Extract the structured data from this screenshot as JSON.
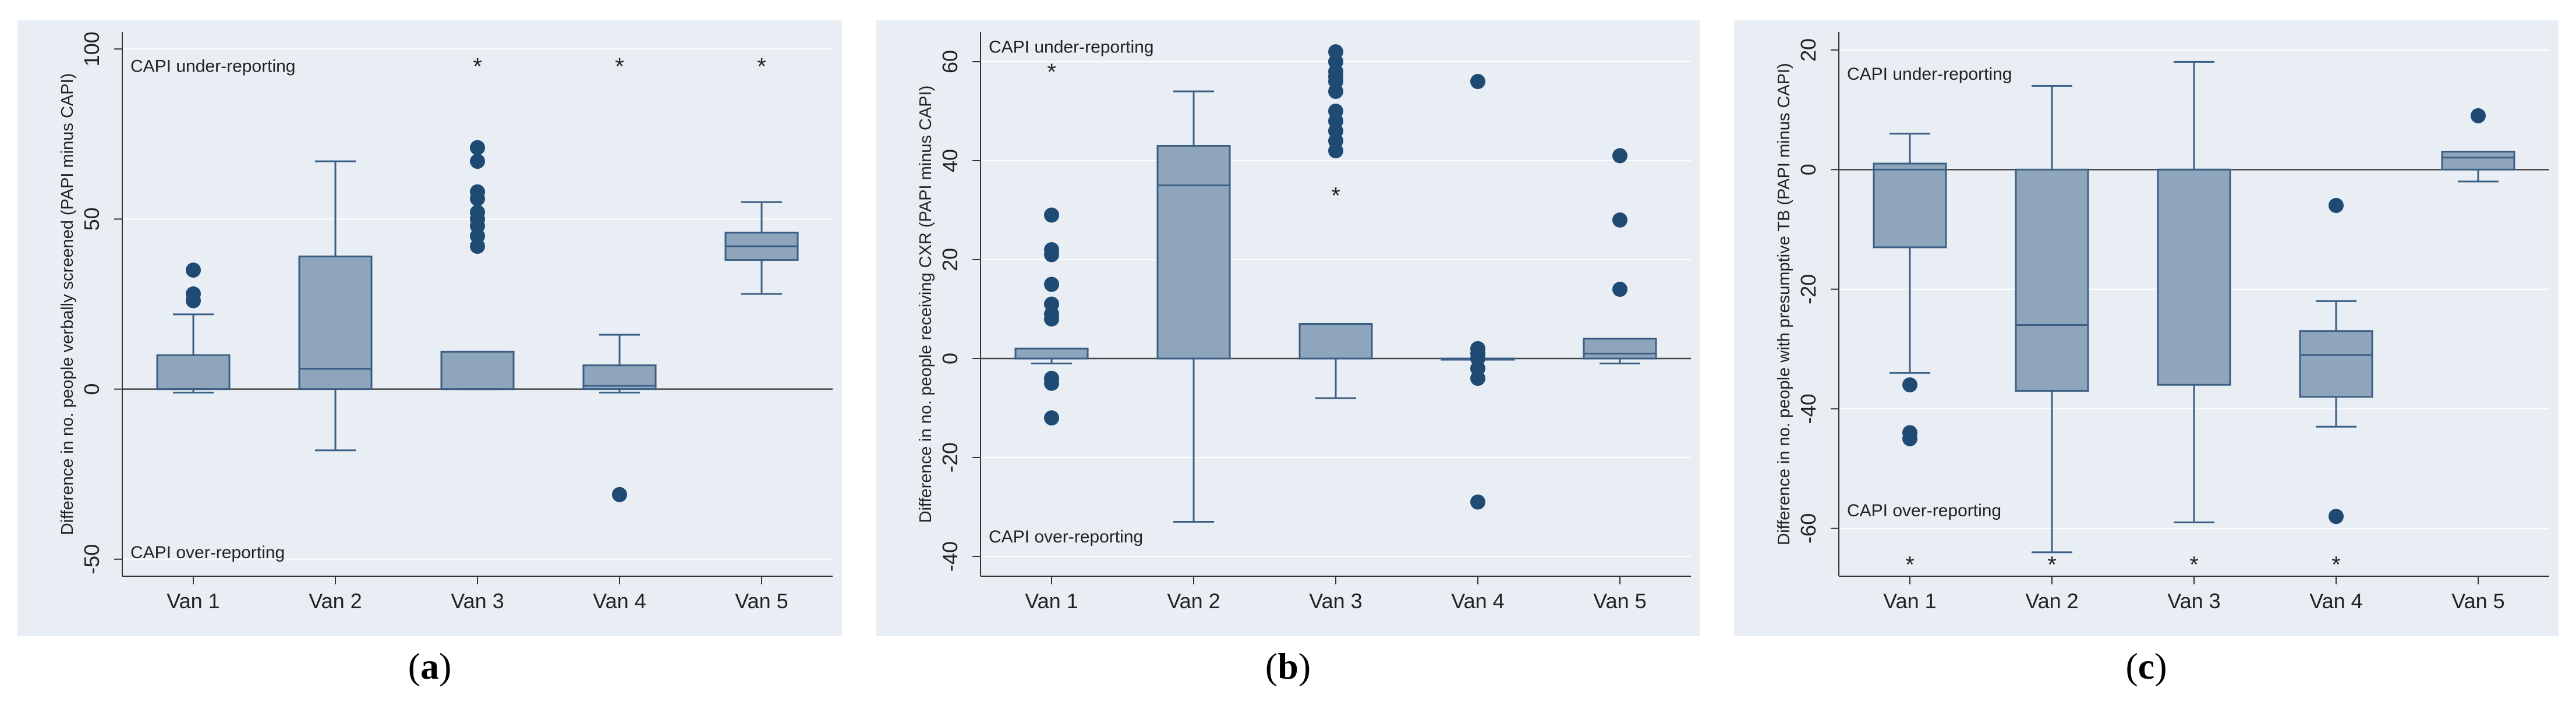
{
  "chart_data": [
    {
      "type": "box",
      "caption": "a",
      "ylabel": "Difference in no. people verbally screened (PAPI minus CAPI)",
      "ylim": [
        -55,
        105
      ],
      "yticks": [
        -50,
        0,
        50,
        100
      ],
      "categories": [
        "Van 1",
        "Van 2",
        "Van 3",
        "Van 4",
        "Van 5"
      ],
      "boxes": [
        {
          "q1": 0,
          "median": 0,
          "q3": 10,
          "wlow": -1,
          "whigh": 22,
          "outliers": [
            26,
            28,
            35
          ],
          "star": false
        },
        {
          "q1": 0,
          "median": 6,
          "q3": 39,
          "wlow": -18,
          "whigh": 67,
          "outliers": [],
          "star": false
        },
        {
          "q1": 0,
          "median": 0,
          "q3": 11,
          "wlow": 0,
          "whigh": 11,
          "outliers": [
            42,
            45,
            48,
            50,
            52,
            56,
            58,
            67,
            71
          ],
          "star": true
        },
        {
          "q1": 0,
          "median": 1,
          "q3": 7,
          "wlow": -1,
          "whigh": 16,
          "outliers": [
            -31
          ],
          "star": true
        },
        {
          "q1": 38,
          "median": 42,
          "q3": 46,
          "wlow": 28,
          "whigh": 55,
          "outliers": [],
          "star": true
        }
      ],
      "star_value": 95,
      "star_label": "*",
      "annotations": {
        "top": "CAPI under-reporting",
        "bottom": "CAPI over-reporting"
      },
      "annotation_values": {
        "top": 95,
        "bottom": -48
      },
      "grid": true,
      "reference_line": 0
    },
    {
      "type": "box",
      "caption": "b",
      "ylabel": "Difference in no. people receiving CXR (PAPI minus CAPI)",
      "ylim": [
        -44,
        66
      ],
      "yticks": [
        -40,
        -20,
        0,
        20,
        40,
        60
      ],
      "categories": [
        "Van 1",
        "Van 2",
        "Van 3",
        "Van 4",
        "Van 5"
      ],
      "boxes": [
        {
          "q1": 0,
          "median": 0,
          "q3": 2,
          "wlow": -1,
          "whigh": 1,
          "outliers": [
            -12,
            -5,
            -4,
            8,
            9,
            11,
            15,
            21,
            22,
            29
          ],
          "star": true,
          "star_at": 58
        },
        {
          "q1": 0,
          "median": 35,
          "q3": 43,
          "wlow": -33,
          "whigh": 54,
          "outliers": [],
          "star": false
        },
        {
          "q1": 0,
          "median": 0,
          "q3": 7,
          "wlow": -8,
          "whigh": 7,
          "outliers": [
            42,
            44,
            46,
            48,
            50,
            54,
            56,
            57,
            58,
            60,
            62
          ],
          "star": true,
          "star_at": 33
        },
        {
          "q1": 0,
          "median": 0,
          "q3": 0,
          "wlow": 0,
          "whigh": 0,
          "outliers": [
            -29,
            -4,
            -2,
            0,
            1,
            2,
            56
          ],
          "star": false
        },
        {
          "q1": 0,
          "median": 1,
          "q3": 4,
          "wlow": -1,
          "whigh": 4,
          "outliers": [
            14,
            28,
            41
          ],
          "star": false
        }
      ],
      "star_label": "*",
      "annotations": {
        "top": "CAPI under-reporting",
        "bottom": "CAPI over-reporting"
      },
      "annotation_values": {
        "top": 63,
        "bottom": -36
      },
      "grid": true,
      "reference_line": 0
    },
    {
      "type": "box",
      "caption": "c",
      "ylabel": "Difference in no. people with presumptive TB (PAPI minus CAPI)",
      "ylim": [
        -68,
        23
      ],
      "yticks": [
        -60,
        -40,
        -20,
        0,
        20
      ],
      "categories": [
        "Van 1",
        "Van 2",
        "Van 3",
        "Van 4",
        "Van 5"
      ],
      "boxes": [
        {
          "q1": -13,
          "median": 0,
          "q3": 1,
          "wlow": -34,
          "whigh": 6,
          "outliers": [
            -45,
            -44,
            -36
          ],
          "star": true
        },
        {
          "q1": -37,
          "median": -26,
          "q3": 0,
          "wlow": -64,
          "whigh": 14,
          "outliers": [],
          "star": true
        },
        {
          "q1": -36,
          "median": 0,
          "q3": 0,
          "wlow": -59,
          "whigh": 18,
          "outliers": [],
          "star": true
        },
        {
          "q1": -38,
          "median": -31,
          "q3": -27,
          "wlow": -43,
          "whigh": -22,
          "outliers": [
            -58,
            -6
          ],
          "star": true
        },
        {
          "q1": 0,
          "median": 2,
          "q3": 3,
          "wlow": -2,
          "whigh": 3,
          "outliers": [
            9
          ],
          "star": false
        }
      ],
      "star_value": -66,
      "star_label": "*",
      "annotations": {
        "top": "CAPI under-reporting",
        "bottom": "CAPI over-reporting"
      },
      "annotation_values": {
        "top": 16,
        "bottom": -57
      },
      "grid": true,
      "reference_line": 0
    }
  ],
  "colors": {
    "box": "#8fa5bb",
    "line": "#3b5f84",
    "dot": "#1e4a73",
    "background": "#e8eef3",
    "grid": "#ffffff"
  }
}
